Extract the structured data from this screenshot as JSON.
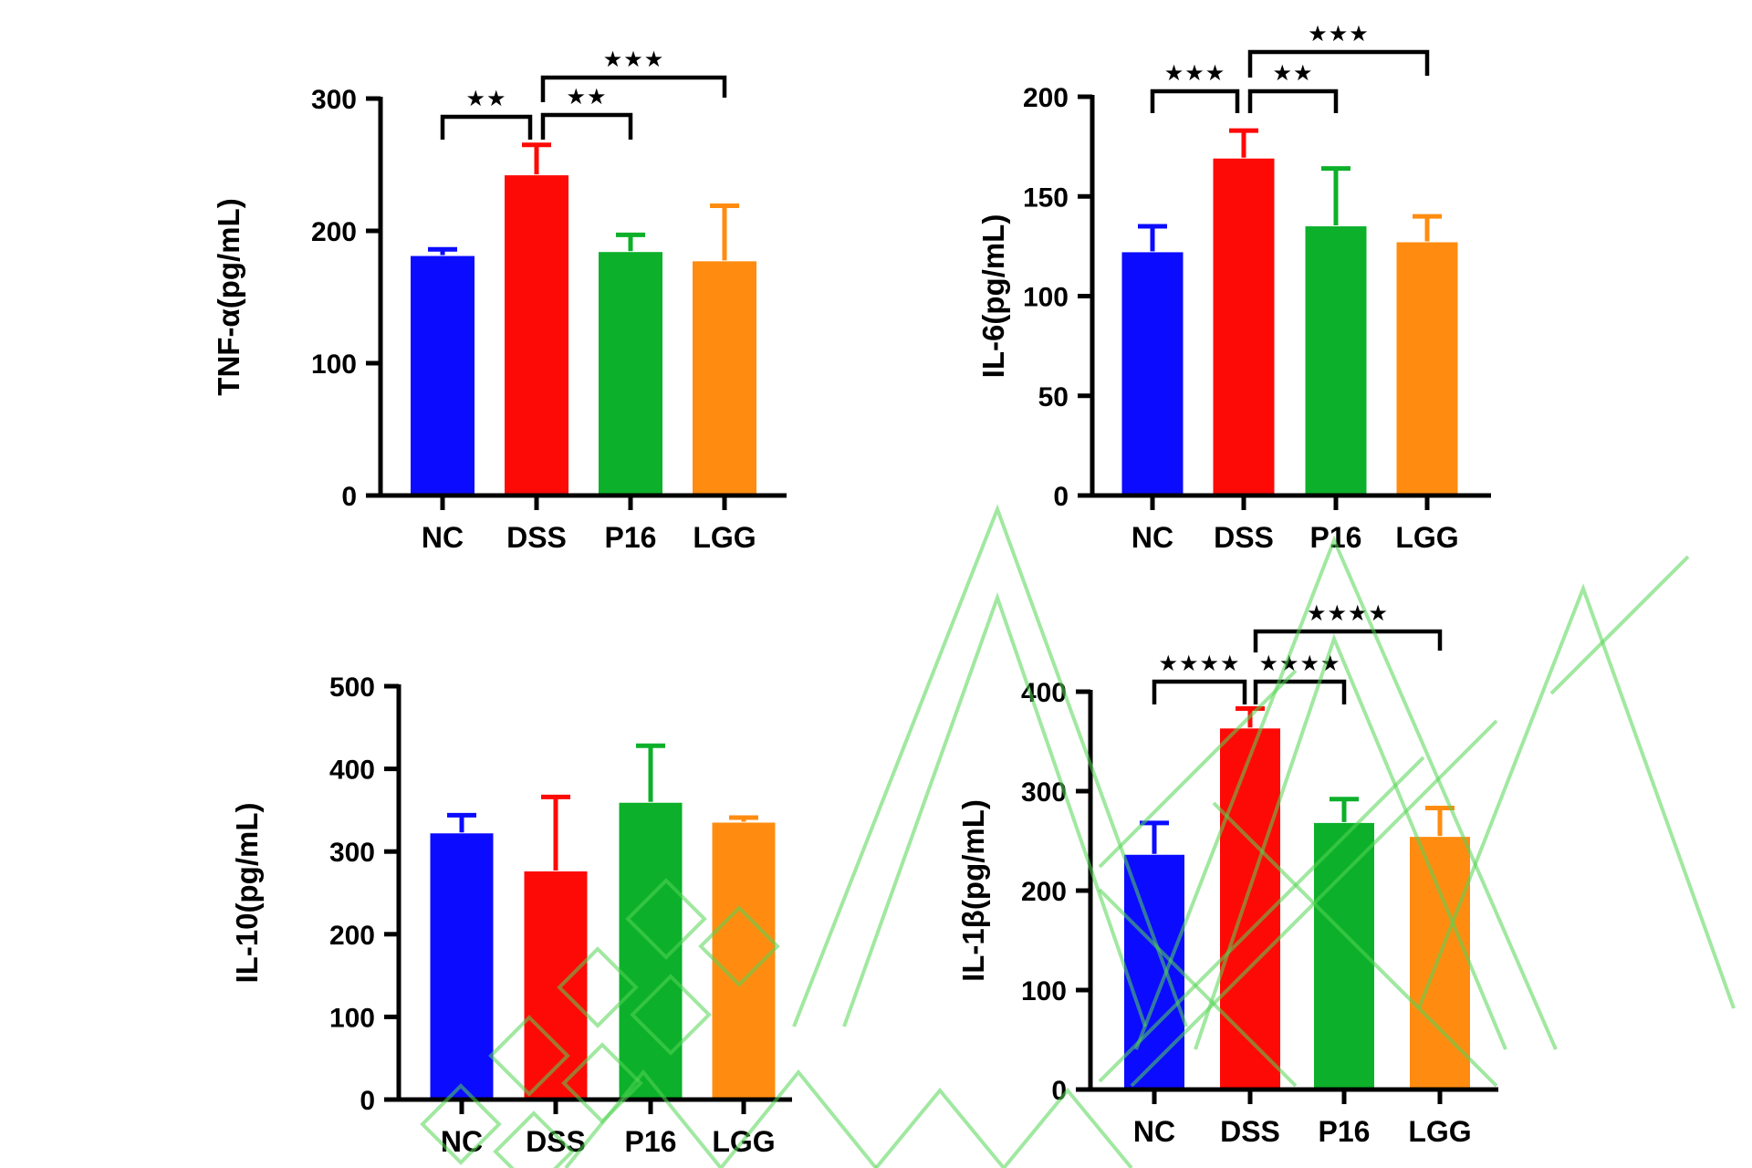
{
  "figure": {
    "description": "Four-panel cytokine ELISA bar figure",
    "groups": [
      "NC",
      "DSS",
      "P16",
      "LGG"
    ]
  },
  "colors": {
    "nc": "#0b0bff",
    "dss": "#fd0a06",
    "p16": "#0cb02a",
    "lgg": "#ff8c10",
    "series": [
      "#0b0bff",
      "#fd0a06",
      "#0cb02a",
      "#ff8c10"
    ],
    "ink": "#000000",
    "watermark": "#54d654",
    "background": "#ffffff"
  },
  "chart_data": [
    {
      "id": "tnf_alpha",
      "type": "bar",
      "title": "",
      "ylabel": "TNF-α(pg/mL)",
      "xlabel": "",
      "categories": [
        "NC",
        "DSS",
        "P16",
        "LGG"
      ],
      "values": [
        181,
        242,
        184,
        177
      ],
      "errors_plus": [
        5,
        23,
        13,
        42
      ],
      "ylim": [
        0,
        300
      ],
      "ytick_step": 100,
      "grid": false,
      "legend": "none",
      "significance": [
        {
          "from": "NC",
          "to": "DSS",
          "label": "**"
        },
        {
          "from": "DSS",
          "to": "P16",
          "label": "**"
        },
        {
          "from": "DSS",
          "to": "LGG",
          "label": "***"
        }
      ]
    },
    {
      "id": "il6",
      "type": "bar",
      "title": "",
      "ylabel": "IL-6(pg/mL)",
      "xlabel": "",
      "categories": [
        "NC",
        "DSS",
        "P16",
        "LGG"
      ],
      "values": [
        122,
        169,
        135,
        127
      ],
      "errors_plus": [
        13,
        14,
        29,
        13
      ],
      "ylim": [
        0,
        200
      ],
      "ytick_step": 50,
      "grid": false,
      "legend": "none",
      "significance": [
        {
          "from": "NC",
          "to": "DSS",
          "label": "***"
        },
        {
          "from": "DSS",
          "to": "P16",
          "label": "**"
        },
        {
          "from": "DSS",
          "to": "LGG",
          "label": "***"
        }
      ]
    },
    {
      "id": "il10",
      "type": "bar",
      "title": "",
      "ylabel": "IL-10(pg/mL)",
      "xlabel": "",
      "categories": [
        "NC",
        "DSS",
        "P16",
        "LGG"
      ],
      "values": [
        322,
        276,
        359,
        335
      ],
      "errors_plus": [
        22,
        90,
        69,
        6
      ],
      "ylim": [
        0,
        500
      ],
      "ytick_step": 100,
      "grid": false,
      "legend": "none",
      "significance": []
    },
    {
      "id": "il1b",
      "type": "bar",
      "title": "",
      "ylabel": "IL-1β(pg/mL)",
      "xlabel": "",
      "categories": [
        "NC",
        "DSS",
        "P16",
        "LGG"
      ],
      "values": [
        236,
        363,
        268,
        254
      ],
      "errors_plus": [
        32,
        20,
        24,
        29
      ],
      "ylim": [
        0,
        400
      ],
      "ytick_step": 100,
      "grid": false,
      "legend": "none",
      "significance": [
        {
          "from": "NC",
          "to": "DSS",
          "label": "****"
        },
        {
          "from": "DSS",
          "to": "P16",
          "label": "****"
        },
        {
          "from": "DSS",
          "to": "LGG",
          "label": "****"
        }
      ]
    }
  ]
}
